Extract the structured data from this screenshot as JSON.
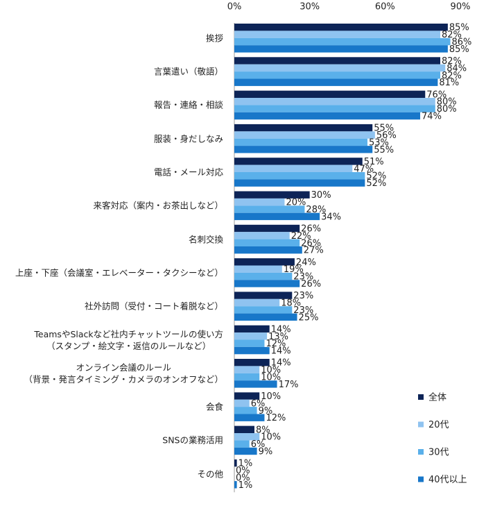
{
  "chart_data": {
    "type": "hbar",
    "categories": [
      "挨拶",
      "言葉遣い（敬語）",
      "報告・連絡・相談",
      "服装・身だしなみ",
      "電話・メール対応",
      "来客対応（案内・お茶出しなど）",
      "名刺交換",
      "上座・下座（会議室・エレベーター・タクシーなど）",
      "社外訪問（受付・コート着脱など）",
      "TeamsやSlackなど社内チャットツールの使い方\n（スタンプ・絵文字・返信のルールなど）",
      "オンライン会議のルール\n（背景・発言タイミング・カメラのオンオフなど）",
      "会食",
      "SNSの業務活用",
      "その他"
    ],
    "series": [
      {
        "name": "全体",
        "color": "#0d2457",
        "values": [
          85,
          82,
          76,
          55,
          51,
          30,
          26,
          24,
          23,
          14,
          14,
          10,
          8,
          1
        ],
        "value_labels": [
          "85%",
          "82%",
          "76%",
          "55%",
          "51%",
          "30%",
          "26%",
          "24%",
          "23%",
          "14%",
          "14%",
          "10%",
          "8%",
          "1%"
        ]
      },
      {
        "name": "20代",
        "color": "#8fc3f0",
        "values": [
          82,
          84,
          80,
          56,
          47,
          20,
          22,
          19,
          18,
          13,
          10,
          6,
          10,
          0
        ],
        "value_labels": [
          "82%",
          "84%",
          "80%",
          "56%",
          "47%",
          "20%",
          "22%",
          "19%",
          "18%",
          "13%",
          "10%",
          "6%",
          "10%",
          "0%"
        ]
      },
      {
        "name": "30代",
        "color": "#5ab0ea",
        "values": [
          86,
          82,
          80,
          53,
          52,
          28,
          26,
          23,
          23,
          12,
          10,
          9,
          6,
          0
        ],
        "value_labels": [
          "86%",
          "82%",
          "80%",
          "53%",
          "52%",
          "28%",
          "26%",
          "23%",
          "23%",
          "12%",
          "10%",
          "9%",
          "6%",
          "0%"
        ]
      },
      {
        "name": "40代以上",
        "color": "#1877c9",
        "values": [
          85,
          81,
          74,
          55,
          52,
          34,
          27,
          26,
          25,
          14,
          17,
          12,
          9,
          1
        ],
        "value_labels": [
          "85%",
          "81%",
          "74%",
          "55%",
          "52%",
          "34%",
          "27%",
          "26%",
          "25%",
          "14%",
          "17%",
          "12%",
          "9%",
          "1%"
        ]
      }
    ],
    "xlim": [
      0,
      90
    ],
    "xticks": [
      {
        "value": 0,
        "label": "0%"
      },
      {
        "value": 30,
        "label": "30%"
      },
      {
        "value": 60,
        "label": "60%"
      },
      {
        "value": 90,
        "label": "90%"
      }
    ],
    "legend": "bottom-right"
  }
}
